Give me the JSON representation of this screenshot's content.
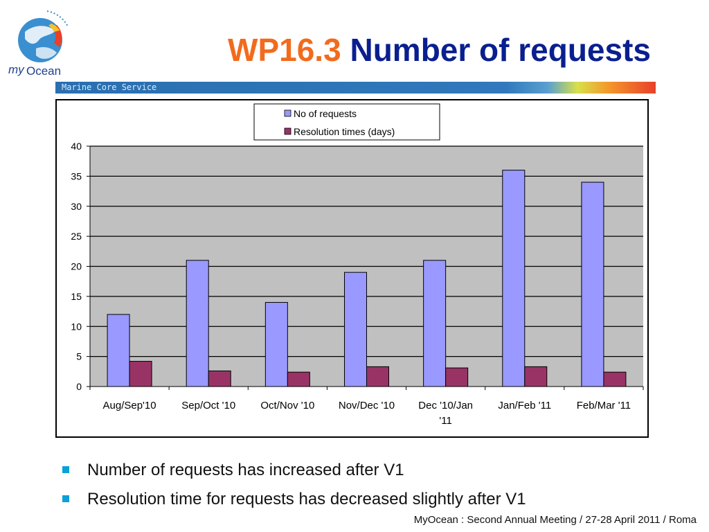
{
  "header": {
    "title_code": "WP16.3",
    "title_text": "Number of requests",
    "banner_text": "Marine Core Service",
    "logo_text": "myOcean"
  },
  "colors": {
    "series_requests": "#9999ff",
    "series_resolution": "#993366",
    "plot_bg": "#c0c0c0",
    "title_code": "#f26b1d",
    "title_text": "#0a1f8f",
    "bullet": "#0aa0d8"
  },
  "chart_data": {
    "type": "bar",
    "categories": [
      "Aug/Sep'10",
      "Sep/Oct '10",
      "Oct/Nov '10",
      "Nov/Dec '10",
      "Dec '10/Jan '11",
      "Jan/Feb '11",
      "Feb/Mar '11"
    ],
    "series": [
      {
        "name": "No of requests",
        "values": [
          12,
          21,
          14,
          19,
          21,
          36,
          34
        ]
      },
      {
        "name": "Resolution times (days)",
        "values": [
          4.2,
          2.6,
          2.4,
          3.3,
          3.1,
          3.3,
          2.4
        ]
      }
    ],
    "ylim": [
      0,
      40
    ],
    "yticks": [
      0,
      5,
      10,
      15,
      20,
      25,
      30,
      35,
      40
    ],
    "grid": true,
    "legend": "top-center"
  },
  "bullets": [
    "Number of requests has increased after V1",
    "Resolution time for requests has decreased slightly after V1"
  ],
  "footer": "MyOcean : Second Annual Meeting / 27-28 April 2011 / Roma"
}
